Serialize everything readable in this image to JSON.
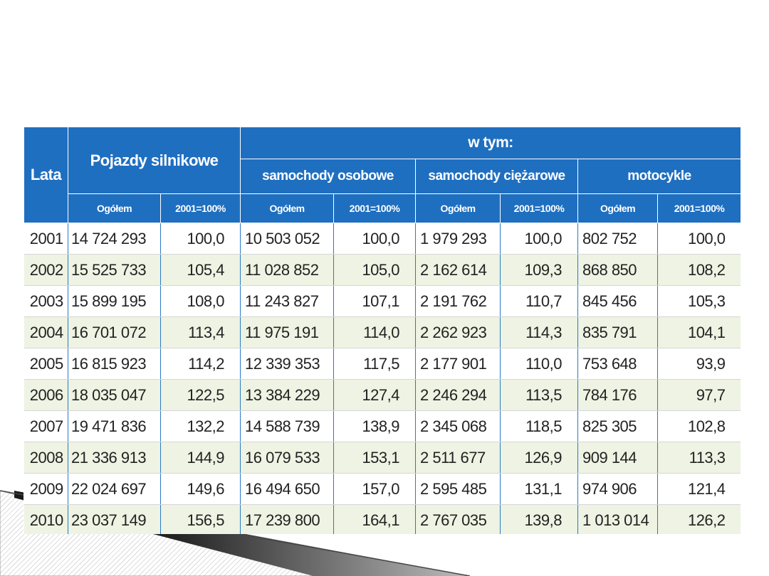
{
  "table": {
    "header": {
      "lata": "Lata",
      "pojazdy": "Pojazdy silnikowe",
      "w_tym": "w tym:",
      "categories": [
        "samochody osobowe",
        "samochody ciężarowe",
        "motocykle"
      ],
      "ogolem": "Ogółem",
      "index": "2001=100%"
    },
    "rows": [
      [
        "2001",
        "14 724 293",
        "100,0",
        "10 503 052",
        "100,0",
        "1 979 293",
        "100,0",
        "802 752",
        "100,0"
      ],
      [
        "2002",
        "15 525 733",
        "105,4",
        "11 028 852",
        "105,0",
        "2 162 614",
        "109,3",
        "868 850",
        "108,2"
      ],
      [
        "2003",
        "15 899 195",
        "108,0",
        "11 243 827",
        "107,1",
        "2 191 762",
        "110,7",
        "845 456",
        "105,3"
      ],
      [
        "2004",
        "16 701 072",
        "113,4",
        "11 975 191",
        "114,0",
        "2 262 923",
        "114,3",
        "835 791",
        "104,1"
      ],
      [
        "2005",
        "16 815 923",
        "114,2",
        "12 339 353",
        "117,5",
        "2 177 901",
        "110,0",
        "753 648",
        "93,9"
      ],
      [
        "2006",
        "18 035 047",
        "122,5",
        "13 384 229",
        "127,4",
        "2 246 294",
        "113,5",
        "784 176",
        "97,7"
      ],
      [
        "2007",
        "19 471 836",
        "132,2",
        "14 588 739",
        "138,9",
        "2 345 068",
        "118,5",
        "825 305",
        "102,8"
      ],
      [
        "2008",
        "21 336 913",
        "144,9",
        "16 079 533",
        "153,1",
        "2 511 677",
        "126,9",
        "909 144",
        "113,3"
      ],
      [
        "2009",
        "22 024 697",
        "149,6",
        "16 494 650",
        "157,0",
        "2 595 485",
        "131,1",
        "974 906",
        "121,4"
      ],
      [
        "2010",
        "23 037 149",
        "156,5",
        "17 239 800",
        "164,1",
        "2 767 035",
        "139,8",
        "1 013 014",
        "126,2"
      ]
    ]
  },
  "colors": {
    "header_blue": "#1f6fc0",
    "row_stripe": "#eef3e3"
  }
}
